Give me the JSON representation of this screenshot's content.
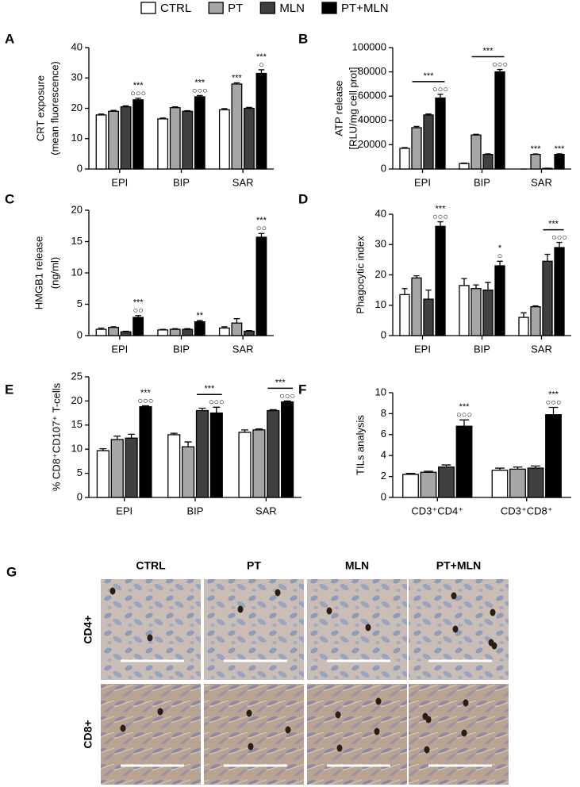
{
  "legend": [
    {
      "name": "CTRL",
      "color": "#ffffff"
    },
    {
      "name": "PT",
      "color": "#a6a6a6"
    },
    {
      "name": "MLN",
      "color": "#404040"
    },
    {
      "name": "PT+MLN",
      "color": "#000000"
    }
  ],
  "chart_data": [
    {
      "type": "bar",
      "panel": "A",
      "ylabel": [
        "CRT exposure",
        "(mean fluorescence)"
      ],
      "categories": [
        "EPI",
        "BIP",
        "SAR"
      ],
      "ylim": [
        0,
        40
      ],
      "yticks": [
        0,
        10,
        20,
        30,
        40
      ],
      "series": [
        {
          "values": [
            17.8,
            16.5,
            19.5
          ],
          "errors": [
            0.3,
            0.3,
            0.4
          ]
        },
        {
          "values": [
            19,
            20.2,
            28
          ],
          "errors": [
            0.3,
            0.3,
            0.4
          ]
        },
        {
          "values": [
            20.5,
            19,
            20
          ],
          "errors": [
            0.3,
            0.2,
            0.3
          ]
        },
        {
          "values": [
            22.8,
            23.8,
            31.5
          ],
          "errors": [
            0.5,
            0.4,
            1.2
          ]
        }
      ],
      "annotations": [
        {
          "category": 0,
          "series": [
            3
          ],
          "text": [
            "***",
            "○○○"
          ]
        },
        {
          "category": 1,
          "series": [
            3
          ],
          "text": [
            "***",
            "○○○"
          ]
        },
        {
          "category": 2,
          "series": [
            1
          ],
          "text": [
            "***"
          ]
        },
        {
          "category": 2,
          "series": [
            3
          ],
          "text": [
            "***",
            "○"
          ]
        }
      ]
    },
    {
      "type": "bar",
      "panel": "B",
      "ylabel": [
        "ATP release",
        "[RLU/mg cell prot]"
      ],
      "categories": [
        "EPI",
        "BIP",
        "SAR"
      ],
      "ylim": [
        0,
        100000
      ],
      "yticks": [
        0,
        20000,
        40000,
        60000,
        80000,
        100000
      ],
      "series": [
        {
          "values": [
            17000,
            4500,
            0
          ],
          "errors": [
            600,
            400,
            0
          ]
        },
        {
          "values": [
            34000,
            28000,
            12000
          ],
          "errors": [
            1000,
            600,
            400
          ]
        },
        {
          "values": [
            44500,
            12000,
            500
          ],
          "errors": [
            800,
            500,
            100
          ]
        },
        {
          "values": [
            58500,
            80000,
            12000
          ],
          "errors": [
            3000,
            2000,
            500
          ]
        }
      ],
      "annotations": [
        {
          "category": 0,
          "series": [
            3
          ],
          "text": [
            "○○○"
          ]
        },
        {
          "category": 0,
          "series": [
            1,
            3
          ],
          "text": [
            "***"
          ]
        },
        {
          "category": 1,
          "series": [
            3
          ],
          "text": [
            "○○○"
          ]
        },
        {
          "category": 1,
          "series": [
            1,
            3
          ],
          "text": [
            "***"
          ]
        },
        {
          "category": 2,
          "series": [
            1
          ],
          "text": [
            "***"
          ]
        },
        {
          "category": 2,
          "series": [
            3
          ],
          "text": [
            "***"
          ]
        }
      ]
    },
    {
      "type": "bar",
      "panel": "C",
      "ylabel": [
        "HMGB1 release",
        "(ng/ml)"
      ],
      "categories": [
        "EPI",
        "BIP",
        "SAR"
      ],
      "ylim": [
        0,
        20
      ],
      "yticks": [
        0,
        5,
        10,
        15,
        20
      ],
      "series": [
        {
          "values": [
            1.0,
            0.9,
            1.2
          ],
          "errors": [
            0.2,
            0.1,
            0.2
          ]
        },
        {
          "values": [
            1.3,
            1.0,
            2.0
          ],
          "errors": [
            0.1,
            0.1,
            0.7
          ]
        },
        {
          "values": [
            0.6,
            1.0,
            0.7
          ],
          "errors": [
            0.1,
            0.1,
            0.1
          ]
        },
        {
          "values": [
            2.9,
            2.2,
            15.7
          ],
          "errors": [
            0.3,
            0.2,
            0.6
          ]
        }
      ],
      "annotations": [
        {
          "category": 0,
          "series": [
            3
          ],
          "text": [
            "***",
            "○○"
          ]
        },
        {
          "category": 1,
          "series": [
            3
          ],
          "text": [
            "**"
          ]
        },
        {
          "category": 2,
          "series": [
            3
          ],
          "text": [
            "***",
            "○○"
          ]
        }
      ]
    },
    {
      "type": "bar",
      "panel": "D",
      "ylabel": [
        "Phagocytic index"
      ],
      "categories": [
        "EPI",
        "BIP",
        "SAR"
      ],
      "ylim": [
        0,
        40
      ],
      "yticks": [
        0,
        10,
        20,
        30,
        40
      ],
      "series": [
        {
          "values": [
            13.5,
            16.5,
            6
          ],
          "errors": [
            2,
            2.3,
            1.5
          ]
        },
        {
          "values": [
            19,
            15.5,
            9.5
          ],
          "errors": [
            0.7,
            1.2,
            0.3
          ]
        },
        {
          "values": [
            12,
            15,
            24.5
          ],
          "errors": [
            3,
            2.5,
            2.3
          ]
        },
        {
          "values": [
            36,
            23,
            29
          ],
          "errors": [
            1.5,
            1.5,
            1.7
          ]
        }
      ],
      "annotations": [
        {
          "category": 0,
          "series": [
            3
          ],
          "text": [
            "***",
            "○○○"
          ]
        },
        {
          "category": 1,
          "series": [
            3
          ],
          "text": [
            "*",
            "○"
          ]
        },
        {
          "category": 2,
          "series": [
            3
          ],
          "text": [
            "○○○"
          ]
        },
        {
          "category": 2,
          "series": [
            2,
            3
          ],
          "text": [
            "***"
          ]
        }
      ]
    },
    {
      "type": "bar",
      "panel": "E",
      "ylabel": [
        "% CD8⁺CD107⁺ T-cells"
      ],
      "categories": [
        "EPI",
        "BIP",
        "SAR"
      ],
      "ylim": [
        0,
        25
      ],
      "yticks": [
        0,
        5,
        10,
        15,
        20,
        25
      ],
      "series": [
        {
          "values": [
            9.7,
            13,
            13.5
          ],
          "errors": [
            0.4,
            0.3,
            0.5
          ]
        },
        {
          "values": [
            12,
            10.5,
            14
          ],
          "errors": [
            0.7,
            1,
            0.2
          ]
        },
        {
          "values": [
            12.3,
            18,
            18
          ],
          "errors": [
            0.8,
            0.5,
            0.2
          ]
        },
        {
          "values": [
            18.8,
            17.5,
            19.8
          ],
          "errors": [
            0.2,
            1.2,
            0.2
          ]
        }
      ],
      "annotations": [
        {
          "category": 0,
          "series": [
            3
          ],
          "text": [
            "***",
            "○○○"
          ]
        },
        {
          "category": 1,
          "series": [
            3
          ],
          "text": [
            "○○○"
          ]
        },
        {
          "category": 1,
          "series": [
            2,
            3
          ],
          "text": [
            "***"
          ]
        },
        {
          "category": 2,
          "series": [
            3
          ],
          "text": [
            "○○○"
          ]
        },
        {
          "category": 2,
          "series": [
            2,
            3
          ],
          "text": [
            "***"
          ]
        }
      ]
    },
    {
      "type": "bar",
      "panel": "F",
      "ylabel": [
        "TILs analysis"
      ],
      "categories": [
        "CD3⁺CD4⁺",
        "CD3⁺CD8⁺"
      ],
      "ylim": [
        0,
        10
      ],
      "yticks": [
        0,
        2,
        4,
        6,
        8,
        10
      ],
      "series": [
        {
          "values": [
            2.2,
            2.6
          ],
          "errors": [
            0.1,
            0.2
          ]
        },
        {
          "values": [
            2.4,
            2.7
          ],
          "errors": [
            0.1,
            0.2
          ]
        },
        {
          "values": [
            2.9,
            2.8
          ],
          "errors": [
            0.2,
            0.2
          ]
        },
        {
          "values": [
            6.8,
            7.9
          ],
          "errors": [
            0.6,
            0.7
          ]
        }
      ],
      "annotations": [
        {
          "category": 0,
          "series": [
            3
          ],
          "text": [
            "***",
            "○○○"
          ]
        },
        {
          "category": 1,
          "series": [
            3
          ],
          "text": [
            "***",
            "○○○"
          ]
        }
      ]
    }
  ],
  "image_panel": {
    "panel": "G",
    "columns": [
      "CTRL",
      "PT",
      "MLN",
      "PT+MLN"
    ],
    "rows": [
      "CD4+",
      "CD8+"
    ]
  }
}
